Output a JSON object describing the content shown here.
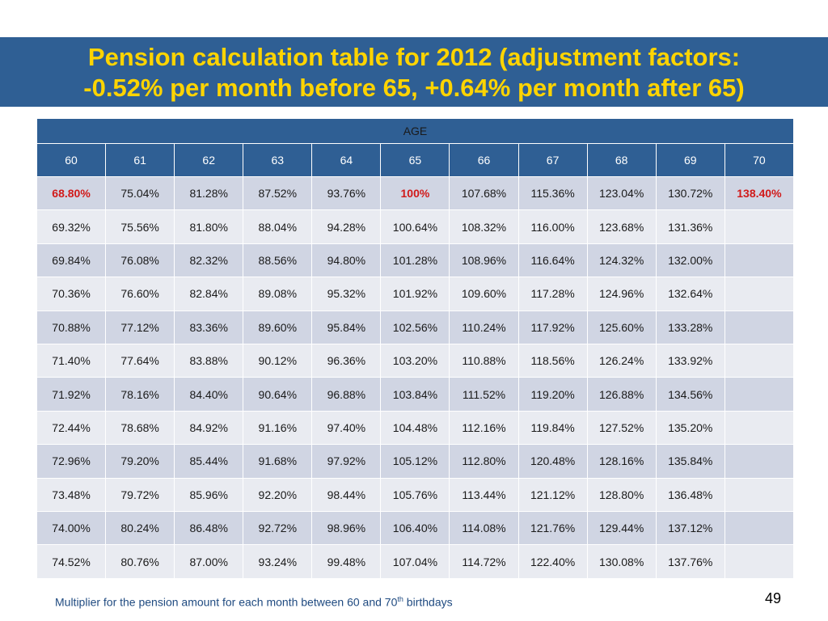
{
  "title": {
    "line1": "Pension calculation table for 2012 (adjustment factors:",
    "line2": "-0.52% per month before 65, +0.64% per month after 65)"
  },
  "table": {
    "header": "AGE",
    "ages": [
      "60",
      "61",
      "62",
      "63",
      "64",
      "65",
      "66",
      "67",
      "68",
      "69",
      "70"
    ],
    "rows": [
      [
        "68.80%",
        "75.04%",
        "81.28%",
        "87.52%",
        "93.76%",
        "100%",
        "107.68%",
        "115.36%",
        "123.04%",
        "130.72%",
        "138.40%"
      ],
      [
        "69.32%",
        "75.56%",
        "81.80%",
        "88.04%",
        "94.28%",
        "100.64%",
        "108.32%",
        "116.00%",
        "123.68%",
        "131.36%",
        ""
      ],
      [
        "69.84%",
        "76.08%",
        "82.32%",
        "88.56%",
        "94.80%",
        "101.28%",
        "108.96%",
        "116.64%",
        "124.32%",
        "132.00%",
        ""
      ],
      [
        "70.36%",
        "76.60%",
        "82.84%",
        "89.08%",
        "95.32%",
        "101.92%",
        "109.60%",
        "117.28%",
        "124.96%",
        "132.64%",
        ""
      ],
      [
        "70.88%",
        "77.12%",
        "83.36%",
        "89.60%",
        "95.84%",
        "102.56%",
        "110.24%",
        "117.92%",
        "125.60%",
        "133.28%",
        ""
      ],
      [
        "71.40%",
        "77.64%",
        "83.88%",
        "90.12%",
        "96.36%",
        "103.20%",
        "110.88%",
        "118.56%",
        "126.24%",
        "133.92%",
        ""
      ],
      [
        "71.92%",
        "78.16%",
        "84.40%",
        "90.64%",
        "96.88%",
        "103.84%",
        "111.52%",
        "119.20%",
        "126.88%",
        "134.56%",
        ""
      ],
      [
        "72.44%",
        "78.68%",
        "84.92%",
        "91.16%",
        "97.40%",
        "104.48%",
        "112.16%",
        "119.84%",
        "127.52%",
        "135.20%",
        ""
      ],
      [
        "72.96%",
        "79.20%",
        "85.44%",
        "91.68%",
        "97.92%",
        "105.12%",
        "112.80%",
        "120.48%",
        "128.16%",
        "135.84%",
        ""
      ],
      [
        "73.48%",
        "79.72%",
        "85.96%",
        "92.20%",
        "98.44%",
        "105.76%",
        "113.44%",
        "121.12%",
        "128.80%",
        "136.48%",
        ""
      ],
      [
        "74.00%",
        "80.24%",
        "86.48%",
        "92.72%",
        "98.96%",
        "106.40%",
        "114.08%",
        "121.76%",
        "129.44%",
        "137.12%",
        ""
      ],
      [
        "74.52%",
        "80.76%",
        "87.00%",
        "93.24%",
        "99.48%",
        "107.04%",
        "114.72%",
        "122.40%",
        "130.08%",
        "137.76%",
        ""
      ]
    ],
    "highlighted_first_row": [
      "68.80%",
      "100%",
      "138.40%"
    ]
  },
  "footnote": {
    "before": "Multiplier for the pension amount for each month between 60 and 70",
    "sup": "th",
    "after": " birthdays"
  },
  "page_number": "49",
  "colors": {
    "title_band": "#2f5f94",
    "title_text": "#ffd400",
    "row_odd": "#d0d5e3",
    "row_even": "#e9ebf1",
    "highlight": "#d11a1a"
  }
}
